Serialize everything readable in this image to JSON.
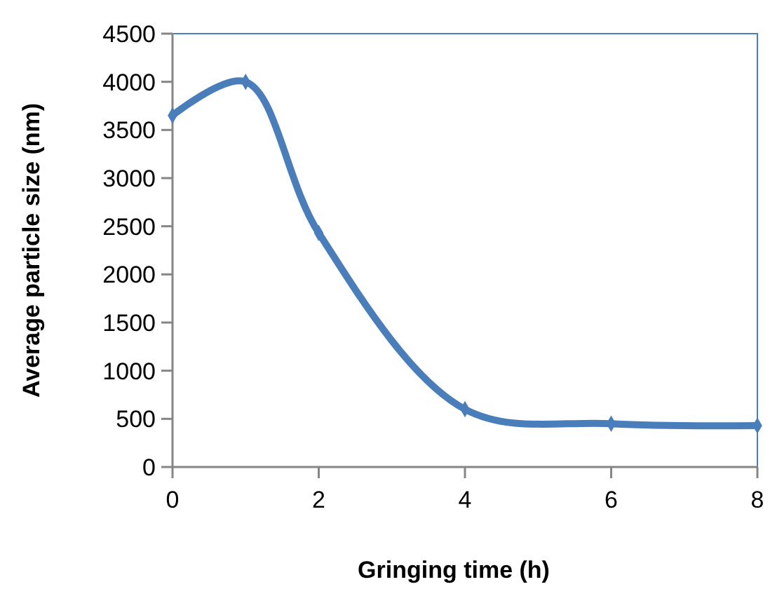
{
  "chart_data": {
    "type": "line",
    "xlabel": "Gringing time (h)",
    "ylabel": "Average particle size (nm)",
    "x": [
      0,
      1,
      2,
      4,
      6,
      8
    ],
    "series": [
      {
        "color": "#4a7ebb",
        "values": [
          3650,
          4000,
          2430,
          600,
          450,
          430
        ]
      }
    ],
    "xlim": [
      0,
      8
    ],
    "xticks": [
      0,
      2,
      4,
      6,
      8
    ],
    "ylim": [
      0,
      4500
    ],
    "yticks": [
      0,
      500,
      1000,
      1500,
      2000,
      2500,
      3000,
      3500,
      4000,
      4500
    ],
    "grid": false,
    "marker": "diamond",
    "line_style": "solid"
  }
}
